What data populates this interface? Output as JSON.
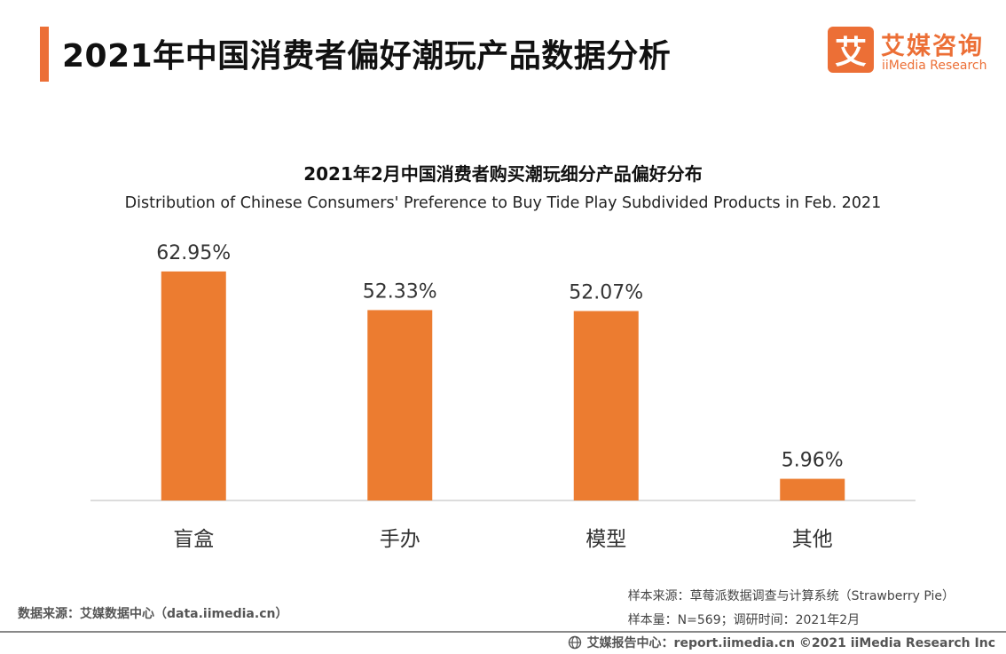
{
  "header": {
    "title": "2021年中国消费者偏好潮玩产品数据分析",
    "logo_glyph": "艾",
    "brand_cn": "艾媒咨询",
    "brand_en": "iiMedia Research",
    "accent_color": "#ec6f36"
  },
  "chart_data": {
    "type": "bar",
    "title": "2021年2月中国消费者购买潮玩细分产品偏好分布",
    "subtitle": "Distribution of Chinese Consumers' Preference to Buy Tide Play Subdivided Products in Feb. 2021",
    "categories": [
      "盲盒",
      "手办",
      "模型",
      "其他"
    ],
    "values": [
      62.95,
      52.33,
      52.07,
      5.96
    ],
    "value_labels": [
      "62.95%",
      "52.33%",
      "52.07%",
      "5.96%"
    ],
    "unit": "%",
    "ylim": [
      0,
      70
    ],
    "bar_color": "#ec7c30",
    "grid": false,
    "xlabel": "",
    "ylabel": ""
  },
  "footer": {
    "source": "数据来源：艾媒数据中心（data.iimedia.cn）",
    "sample_source": "样本来源：草莓派数据调查与计算系统（Strawberry Pie）",
    "sample_size": "样本量：N=569；调研时间：2021年2月",
    "report_center": "艾媒报告中心：report.iimedia.cn ©2021 iiMedia Research Inc"
  }
}
